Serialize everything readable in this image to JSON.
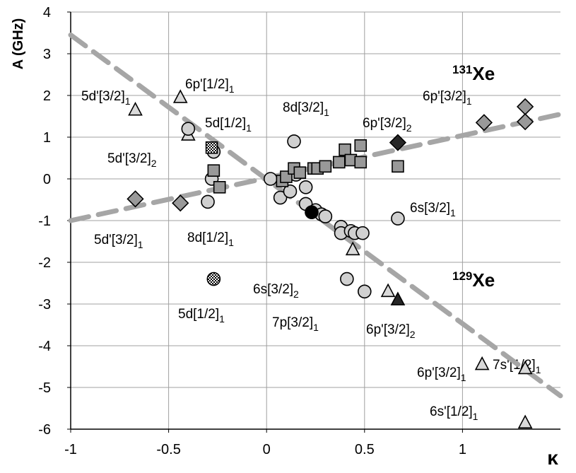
{
  "chart_data": {
    "type": "scatter",
    "y_label": "A (GHz)",
    "x_label": "κ",
    "xlim": [
      -1,
      1.5
    ],
    "ylim": [
      -6,
      4
    ],
    "xticks": [
      -1,
      -0.5,
      0,
      0.5,
      1
    ],
    "yticks": [
      -6,
      -5,
      -4,
      -3,
      -2,
      -1,
      0,
      1,
      2,
      3,
      4
    ],
    "grid": true,
    "fits": [
      {
        "color": "#a6a6a6",
        "x": [
          -1,
          1.5
        ],
        "values": [
          -1,
          1.55
        ]
      },
      {
        "color": "#a6a6a6",
        "x": [
          -1,
          1.5
        ],
        "values": [
          3.45,
          -5.2
        ]
      }
    ],
    "series": [
      {
        "marker": "triangle",
        "color": "#d9d9d9",
        "x": [
          -0.67,
          -0.44,
          -0.4,
          0.44,
          0.62,
          1.1,
          1.32,
          1.32
        ],
        "values": [
          1.65,
          1.95,
          1.05,
          -1.7,
          -2.7,
          -4.45,
          -4.55,
          -5.85
        ]
      },
      {
        "marker": "triangle",
        "color": "#262626",
        "x": [
          0.67
        ],
        "values": [
          -2.9
        ]
      },
      {
        "marker": "circle",
        "color": "#d0d0d0",
        "x": [
          -0.4,
          -0.27,
          -0.3,
          -0.28,
          0.14,
          0.67,
          0.41,
          0.5,
          0.02,
          0.07,
          0.12,
          0.15,
          0.2,
          0.2,
          0.25,
          0.28,
          0.3,
          0.38,
          0.38,
          0.43,
          0.45,
          0.49
        ],
        "values": [
          1.2,
          0.65,
          -0.55,
          0.0,
          0.9,
          -0.95,
          -2.4,
          -2.7,
          0,
          -0.45,
          -0.3,
          0.1,
          -0.2,
          -0.6,
          -0.75,
          -0.85,
          -0.9,
          -1.15,
          -1.3,
          -1.25,
          -1.3,
          -1.3
        ]
      },
      {
        "marker": "circle",
        "color": "#000000",
        "x": [
          0.23
        ],
        "values": [
          -0.8
        ]
      },
      {
        "marker": "circle",
        "color": "#ffffff",
        "pattern": "checker",
        "x": [
          -0.27
        ],
        "values": [
          -2.4
        ]
      },
      {
        "marker": "square",
        "color": "#999999",
        "x": [
          -0.27,
          -0.24,
          0.08,
          0.1,
          0.14,
          0.17,
          0.24,
          0.26,
          0.3,
          0.37,
          0.4,
          0.43,
          0.48,
          0.48,
          0.67
        ],
        "values": [
          0.2,
          -0.2,
          -0.05,
          0.05,
          0.25,
          0.15,
          0.25,
          0.25,
          0.3,
          0.4,
          0.7,
          0.45,
          0.8,
          0.4,
          0.3
        ]
      },
      {
        "marker": "square",
        "color": "#ffffff",
        "pattern": "checker",
        "x": [
          -0.28
        ],
        "values": [
          0.75
        ]
      },
      {
        "marker": "diamond",
        "color": "#999999",
        "x": [
          -0.67,
          -0.44,
          1.11,
          1.32,
          1.32
        ],
        "values": [
          -0.48,
          -0.58,
          1.35,
          1.73,
          1.37
        ]
      },
      {
        "marker": "diamond",
        "color": "#262626",
        "x": [
          0.67
        ],
        "values": [
          0.87
        ]
      }
    ],
    "annotations": [
      {
        "text": "6p'[1/2]",
        "subscript": "1"
      },
      {
        "text": "5d'[3/2]",
        "subscript": "1"
      },
      {
        "text": "8d[3/2]",
        "subscript": "1"
      },
      {
        "text": "6p'[3/2]",
        "subscript": "1"
      },
      {
        "text": "5d[1/2]",
        "subscript": "1"
      },
      {
        "text": "6p'[3/2]",
        "subscript": "2"
      },
      {
        "text": "5d'[3/2]",
        "subscript": "2"
      },
      {
        "text": "6s[3/2]",
        "subscript": "1"
      },
      {
        "text": "5d'[3/2]",
        "subscript": "1"
      },
      {
        "text": "8d[1/2]",
        "subscript": "1"
      },
      {
        "text": "6s[3/2]",
        "subscript": "2"
      },
      {
        "text": "5d[1/2]",
        "subscript": "1"
      },
      {
        "text": "7p[3/2]",
        "subscript": "1"
      },
      {
        "text": "6p'[3/2]",
        "subscript": "2"
      },
      {
        "text": "7s'[1/2]",
        "subscript": "1"
      },
      {
        "text": "6p'[3/2]",
        "subscript": "1"
      },
      {
        "text": "6s'[1/2]",
        "subscript": "1"
      }
    ],
    "isotopes": [
      {
        "superscript": "131",
        "text": "Xe"
      },
      {
        "superscript": "129",
        "text": "Xe"
      }
    ]
  }
}
